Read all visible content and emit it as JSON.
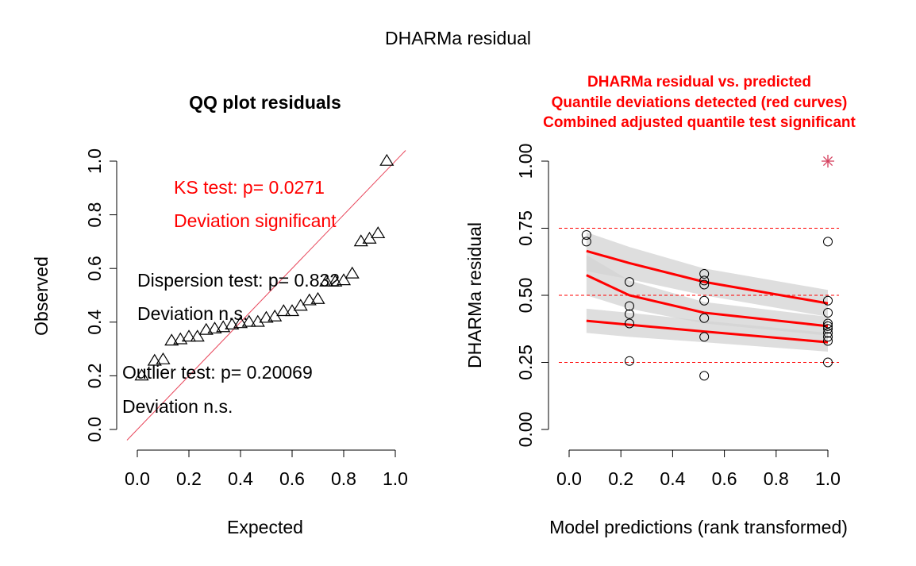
{
  "page_title": "DHARMa residual",
  "chart_data": [
    {
      "type": "scatter",
      "title": "QQ plot residuals",
      "xlabel": "Expected",
      "ylabel": "Observed",
      "xlim": [
        0,
        1
      ],
      "ylim": [
        0,
        1
      ],
      "x_ticks": [
        "0.0",
        "0.2",
        "0.4",
        "0.6",
        "0.8",
        "1.0"
      ],
      "y_ticks": [
        "0.0",
        "0.2",
        "0.4",
        "0.6",
        "0.8",
        "1.0"
      ],
      "reference_line": "y = x",
      "marker": "triangle",
      "colors": {
        "points": "#000000",
        "reference_line": "#e8455a",
        "significant_text": "#ff0000"
      },
      "annotations": {
        "ks_test": "KS test: p= 0.0271",
        "ks_result": "Deviation  significant",
        "dispersion_test": "Dispersion test: p= 0.832",
        "dispersion_result": "Deviation  n.s.",
        "outlier_test": "Outlier test: p= 0.20069",
        "outlier_result": "Deviation  n.s."
      },
      "points": [
        {
          "x": 0.017,
          "y": 0.2
        },
        {
          "x": 0.067,
          "y": 0.255
        },
        {
          "x": 0.1,
          "y": 0.26
        },
        {
          "x": 0.133,
          "y": 0.33
        },
        {
          "x": 0.167,
          "y": 0.335
        },
        {
          "x": 0.2,
          "y": 0.345
        },
        {
          "x": 0.233,
          "y": 0.345
        },
        {
          "x": 0.267,
          "y": 0.37
        },
        {
          "x": 0.3,
          "y": 0.375
        },
        {
          "x": 0.333,
          "y": 0.38
        },
        {
          "x": 0.367,
          "y": 0.39
        },
        {
          "x": 0.4,
          "y": 0.395
        },
        {
          "x": 0.433,
          "y": 0.4
        },
        {
          "x": 0.467,
          "y": 0.4
        },
        {
          "x": 0.5,
          "y": 0.415
        },
        {
          "x": 0.533,
          "y": 0.42
        },
        {
          "x": 0.567,
          "y": 0.44
        },
        {
          "x": 0.6,
          "y": 0.44
        },
        {
          "x": 0.633,
          "y": 0.46
        },
        {
          "x": 0.667,
          "y": 0.48
        },
        {
          "x": 0.7,
          "y": 0.485
        },
        {
          "x": 0.733,
          "y": 0.55
        },
        {
          "x": 0.767,
          "y": 0.55
        },
        {
          "x": 0.8,
          "y": 0.555
        },
        {
          "x": 0.833,
          "y": 0.58
        },
        {
          "x": 0.867,
          "y": 0.7
        },
        {
          "x": 0.9,
          "y": 0.71
        },
        {
          "x": 0.933,
          "y": 0.73
        },
        {
          "x": 0.967,
          "y": 1.0
        }
      ]
    },
    {
      "type": "scatter",
      "title_lines": [
        "DHARMa residual vs. predicted",
        "Quantile deviations detected (red curves)",
        "Combined adjusted quantile test significant"
      ],
      "xlabel": "Model predictions (rank transformed)",
      "ylabel": "DHARMa residual",
      "xlim": [
        0,
        1
      ],
      "ylim": [
        0,
        1
      ],
      "x_ticks": [
        "0.0",
        "0.2",
        "0.4",
        "0.6",
        "0.8",
        "1.0"
      ],
      "y_ticks": [
        "0.00",
        "0.25",
        "0.50",
        "0.75",
        "1.00"
      ],
      "reference_lines": [
        0.25,
        0.5,
        0.75
      ],
      "colors": {
        "title": "#ff0000",
        "curves": "#ff0000",
        "bands": "#d3d3d3",
        "reference_lines": "#ff0000",
        "outlier": "#d5405e"
      },
      "points": [
        {
          "x": 0.067,
          "y": 0.7
        },
        {
          "x": 0.067,
          "y": 0.725
        },
        {
          "x": 0.233,
          "y": 0.255
        },
        {
          "x": 0.233,
          "y": 0.395
        },
        {
          "x": 0.233,
          "y": 0.43
        },
        {
          "x": 0.233,
          "y": 0.46
        },
        {
          "x": 0.233,
          "y": 0.55
        },
        {
          "x": 0.522,
          "y": 0.2
        },
        {
          "x": 0.522,
          "y": 0.345
        },
        {
          "x": 0.522,
          "y": 0.415
        },
        {
          "x": 0.522,
          "y": 0.48
        },
        {
          "x": 0.522,
          "y": 0.54
        },
        {
          "x": 0.522,
          "y": 0.555
        },
        {
          "x": 0.522,
          "y": 0.58
        },
        {
          "x": 1.0,
          "y": 0.25
        },
        {
          "x": 1.0,
          "y": 0.33
        },
        {
          "x": 1.0,
          "y": 0.345
        },
        {
          "x": 1.0,
          "y": 0.36
        },
        {
          "x": 1.0,
          "y": 0.375
        },
        {
          "x": 1.0,
          "y": 0.385
        },
        {
          "x": 1.0,
          "y": 0.395
        },
        {
          "x": 1.0,
          "y": 0.435
        },
        {
          "x": 1.0,
          "y": 0.48
        },
        {
          "x": 1.0,
          "y": 0.7
        }
      ],
      "outliers": [
        {
          "x": 1.0,
          "y": 1.0
        }
      ],
      "quantile_curves": [
        {
          "quantile": 0.75,
          "x": [
            0.067,
            0.233,
            0.522,
            1.0
          ],
          "y": [
            0.665,
            0.62,
            0.55,
            0.47
          ]
        },
        {
          "quantile": 0.5,
          "x": [
            0.067,
            0.233,
            0.522,
            1.0
          ],
          "y": [
            0.575,
            0.5,
            0.435,
            0.385
          ]
        },
        {
          "quantile": 0.25,
          "x": [
            0.067,
            0.233,
            0.522,
            1.0
          ],
          "y": [
            0.405,
            0.39,
            0.365,
            0.325
          ]
        }
      ],
      "quantile_bands": [
        {
          "quantile": 0.75,
          "x": [
            0.067,
            0.233,
            0.522,
            1.0
          ],
          "lower": [
            0.59,
            0.56,
            0.5,
            0.42
          ],
          "upper": [
            0.735,
            0.68,
            0.6,
            0.52
          ]
        },
        {
          "quantile": 0.5,
          "x": [
            0.067,
            0.233,
            0.522,
            1.0
          ],
          "lower": [
            0.5,
            0.45,
            0.395,
            0.35
          ],
          "upper": [
            0.65,
            0.555,
            0.475,
            0.42
          ]
        },
        {
          "quantile": 0.25,
          "x": [
            0.067,
            0.233,
            0.522,
            1.0
          ],
          "lower": [
            0.36,
            0.345,
            0.325,
            0.29
          ],
          "upper": [
            0.45,
            0.435,
            0.405,
            0.36
          ]
        }
      ]
    }
  ]
}
